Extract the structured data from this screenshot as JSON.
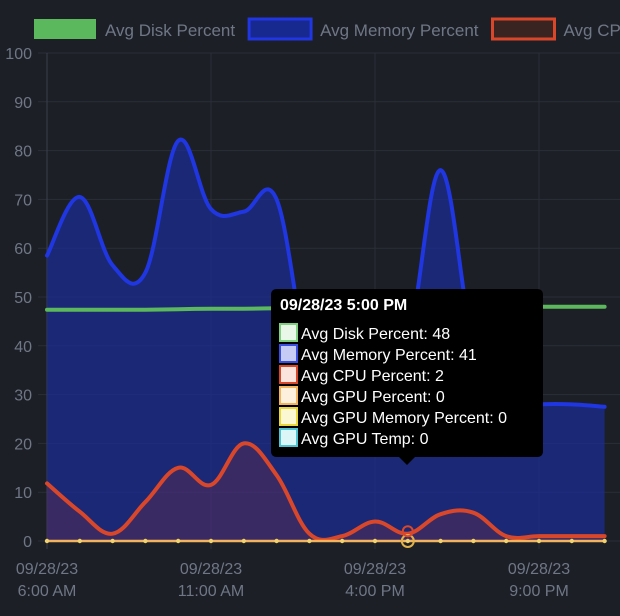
{
  "chart_data": {
    "type": "area",
    "ylim": [
      0,
      100
    ],
    "yticks": [
      "0",
      "10",
      "20",
      "30",
      "40",
      "50",
      "60",
      "70",
      "80",
      "90",
      "100"
    ],
    "xticks": [
      {
        "date": "09/28/23",
        "time": "6:00 AM",
        "x": 0
      },
      {
        "date": "09/28/23",
        "time": "11:00 AM",
        "x": 5
      },
      {
        "date": "09/28/23",
        "time": "4:00 PM",
        "x": 10
      },
      {
        "date": "09/28/23",
        "time": "9:00 PM",
        "x": 15
      }
    ],
    "x": [
      0,
      1,
      2,
      3,
      4,
      5,
      6,
      7,
      8,
      9,
      10,
      11,
      12,
      13,
      14,
      15,
      16,
      17
    ],
    "legend": [
      {
        "name": "Avg Disk Percent",
        "color": "#5cb85c",
        "fill": "#5cb85c"
      },
      {
        "name": "Avg Memory Percent",
        "color": "#1f36e0",
        "fill": "#17288f"
      },
      {
        "name": "Avg CPU Percent",
        "color": "#d9472b",
        "fill": "#d9472b"
      }
    ],
    "series": [
      {
        "name": "Avg Disk Percent",
        "color": "#5cb85c",
        "values": [
          47.4,
          47.4,
          47.4,
          47.4,
          47.5,
          47.6,
          47.6,
          47.7,
          47.8,
          47.8,
          47.9,
          47.9,
          48,
          48,
          48,
          48,
          48,
          48
        ]
      },
      {
        "name": "Avg Memory Percent",
        "color": "#1f36e0",
        "values": [
          58.5,
          70.5,
          56.5,
          55,
          82,
          68,
          67.5,
          70,
          36,
          30,
          38,
          41,
          76,
          40,
          27.5,
          28,
          28,
          27.5
        ]
      },
      {
        "name": "Avg CPU Percent",
        "color": "#d9472b",
        "values": [
          11.8,
          6,
          1.5,
          8,
          15,
          11.5,
          20,
          13.5,
          1.5,
          1,
          4,
          1.5,
          5.5,
          5.8,
          1,
          1,
          1,
          1
        ]
      },
      {
        "name": "Avg GPU Percent",
        "color": "#f2b35c",
        "values": [
          0,
          0,
          0,
          0,
          0,
          0,
          0,
          0,
          0,
          0,
          0,
          0,
          0,
          0,
          0,
          0,
          0,
          0
        ]
      }
    ],
    "tooltip": {
      "title": "09/28/23 5:00 PM",
      "index": 11,
      "items": [
        {
          "label": "Avg Disk Percent: 48",
          "border": "#7fd07f",
          "fill": "#e8f7e8"
        },
        {
          "label": "Avg Memory Percent: 41",
          "border": "#3a4fe0",
          "fill": "#c5cbf5"
        },
        {
          "label": "Avg CPU Percent: 2",
          "border": "#d9472b",
          "fill": "#fbe3de"
        },
        {
          "label": "Avg GPU Percent: 0",
          "border": "#f2b35c",
          "fill": "#fdf0dc"
        },
        {
          "label": "Avg GPU Memory Percent: 0",
          "border": "#e8d63a",
          "fill": "#fbf7d2"
        },
        {
          "label": "Avg GPU Temp: 0",
          "border": "#4fc3cf",
          "fill": "#dcf5f7"
        }
      ]
    }
  }
}
